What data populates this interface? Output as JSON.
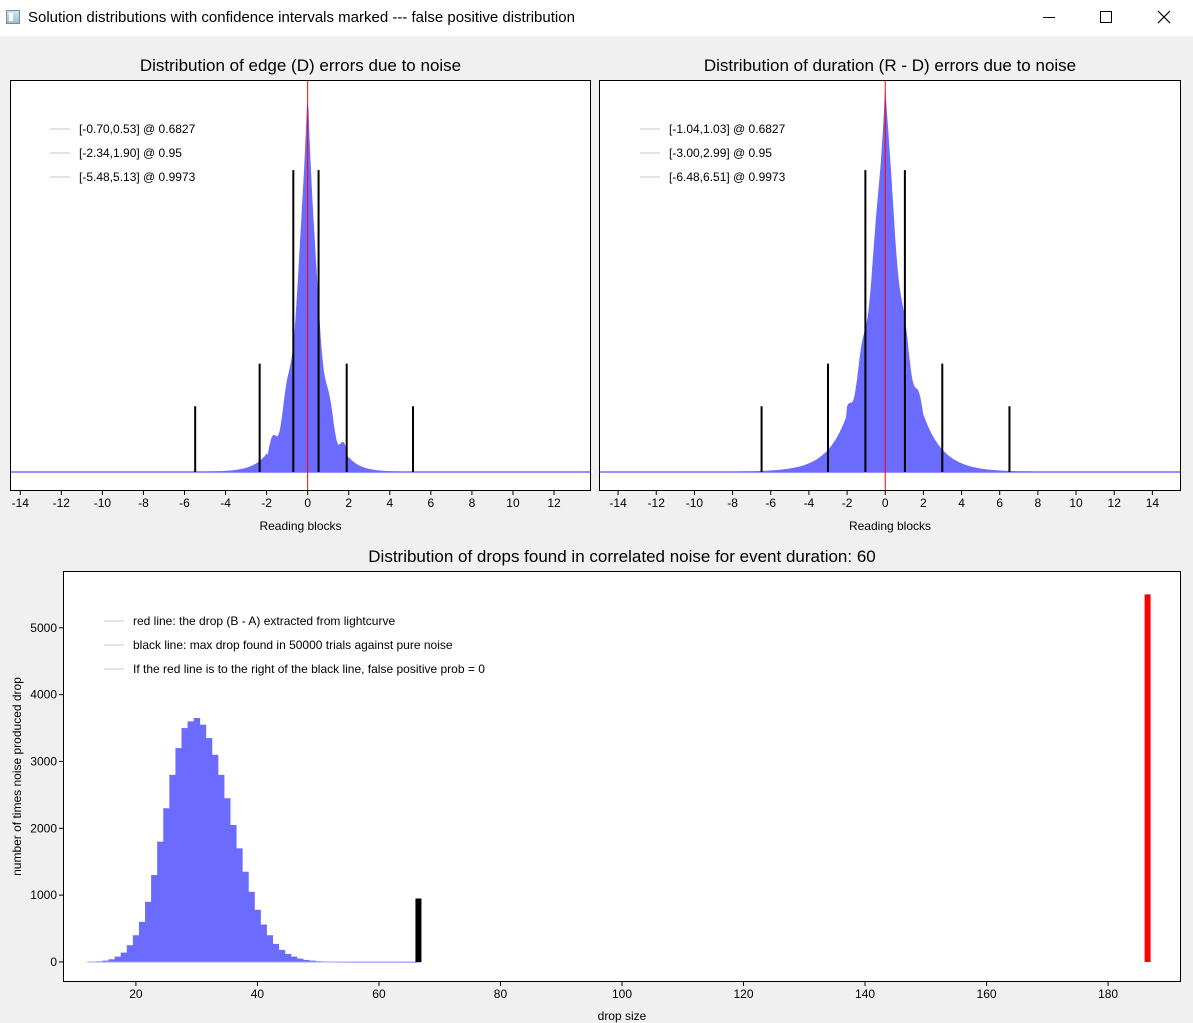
{
  "window": {
    "title": "Solution distributions with confidence intervals marked --- false positive distribution",
    "minimize_icon": "minimize-icon",
    "maximize_icon": "maximize-icon",
    "close_icon": "close-icon"
  },
  "chart_data": [
    {
      "type": "histogram",
      "title": "Distribution of edge (D) errors due to noise",
      "xlabel": "Reading blocks",
      "ylabel": "",
      "xlim": [
        -14.5,
        13.8
      ],
      "xticks": [
        -14,
        -12,
        -10,
        -8,
        -6,
        -4,
        -2,
        0,
        2,
        4,
        6,
        8,
        10,
        12
      ],
      "distribution": {
        "center": 0.0,
        "left_scale": 0.75,
        "right_scale": 0.7,
        "peak": 1.0
      },
      "legend": [
        "[-0.70,0.53] @ 0.6827",
        "[-2.34,1.90] @ 0.95",
        "[-5.48,5.13] @ 0.9973"
      ],
      "intervals": [
        {
          "low": -0.7,
          "high": 0.53,
          "level": 0.6827,
          "marker_height": 0.78
        },
        {
          "low": -2.34,
          "high": 1.9,
          "level": 0.95,
          "marker_height": 0.28
        },
        {
          "low": -5.48,
          "high": 5.13,
          "level": 0.9973,
          "marker_height": 0.17
        }
      ],
      "red_line_x": 0,
      "colors": {
        "fill": "#6b6bff",
        "interval": "#000000",
        "red": "#ff0000"
      }
    },
    {
      "type": "histogram",
      "title": "Distribution of duration (R - D) errors due to noise",
      "xlabel": "Reading blocks",
      "ylabel": "",
      "xlim": [
        -15.0,
        15.5
      ],
      "xticks": [
        -14,
        -12,
        -10,
        -8,
        -6,
        -4,
        -2,
        0,
        2,
        4,
        6,
        8,
        10,
        12,
        14
      ],
      "distribution": {
        "center": 0.0,
        "left_scale": 1.2,
        "right_scale": 1.2,
        "peak": 1.0
      },
      "legend": [
        "[-1.04,1.03] @ 0.6827",
        "[-3.00,2.99] @ 0.95",
        "[-6.48,6.51] @ 0.9973"
      ],
      "intervals": [
        {
          "low": -1.04,
          "high": 1.03,
          "level": 0.6827,
          "marker_height": 0.78
        },
        {
          "low": -3.0,
          "high": 2.99,
          "level": 0.95,
          "marker_height": 0.28
        },
        {
          "low": -6.48,
          "high": 6.51,
          "level": 0.9973,
          "marker_height": 0.17
        }
      ],
      "red_line_x": 0,
      "colors": {
        "fill": "#6b6bff",
        "interval": "#000000",
        "red": "#ff0000"
      }
    },
    {
      "type": "bar",
      "title": "Distribution of drops found in correlated noise for event duration: 60",
      "xlabel": "drop size",
      "ylabel": "number of times noise produced drop",
      "xlim": [
        8,
        192
      ],
      "ylim": [
        -300,
        5850
      ],
      "xticks": [
        20,
        40,
        60,
        80,
        100,
        120,
        140,
        160,
        180
      ],
      "yticks": [
        0,
        1000,
        2000,
        3000,
        4000,
        5000
      ],
      "bin_width": 1,
      "bins_x": [
        13,
        14,
        15,
        16,
        17,
        18,
        19,
        20,
        21,
        22,
        23,
        24,
        25,
        26,
        27,
        28,
        29,
        30,
        31,
        32,
        33,
        34,
        35,
        36,
        37,
        38,
        39,
        40,
        41,
        42,
        43,
        44,
        45,
        46,
        47,
        48,
        49,
        50,
        51,
        52,
        53,
        54,
        55,
        56,
        57,
        58,
        59,
        60,
        61,
        62,
        63,
        64,
        65,
        66
      ],
      "counts": [
        5,
        10,
        20,
        40,
        80,
        140,
        250,
        400,
        600,
        900,
        1300,
        1800,
        2300,
        2800,
        3200,
        3500,
        3600,
        3650,
        3550,
        3350,
        3100,
        2800,
        2450,
        2050,
        1700,
        1350,
        1050,
        780,
        560,
        400,
        270,
        180,
        120,
        80,
        50,
        30,
        20,
        12,
        8,
        5,
        3,
        2,
        1,
        1,
        1,
        1,
        1,
        1,
        1,
        1,
        1,
        1,
        0,
        0
      ],
      "legend": [
        "red line: the drop (B - A) extracted from lightcurve",
        "black line: max drop found in 50000 trials against pure noise",
        "If the red line is to the right of the black line, false positive prob = 0"
      ],
      "black_line": {
        "x": 66.5,
        "y": 950
      },
      "red_line": {
        "x": 186.5,
        "y": 5500
      },
      "colors": {
        "fill": "#6b6bff",
        "black": "#000000",
        "red": "#ff0000"
      }
    }
  ]
}
